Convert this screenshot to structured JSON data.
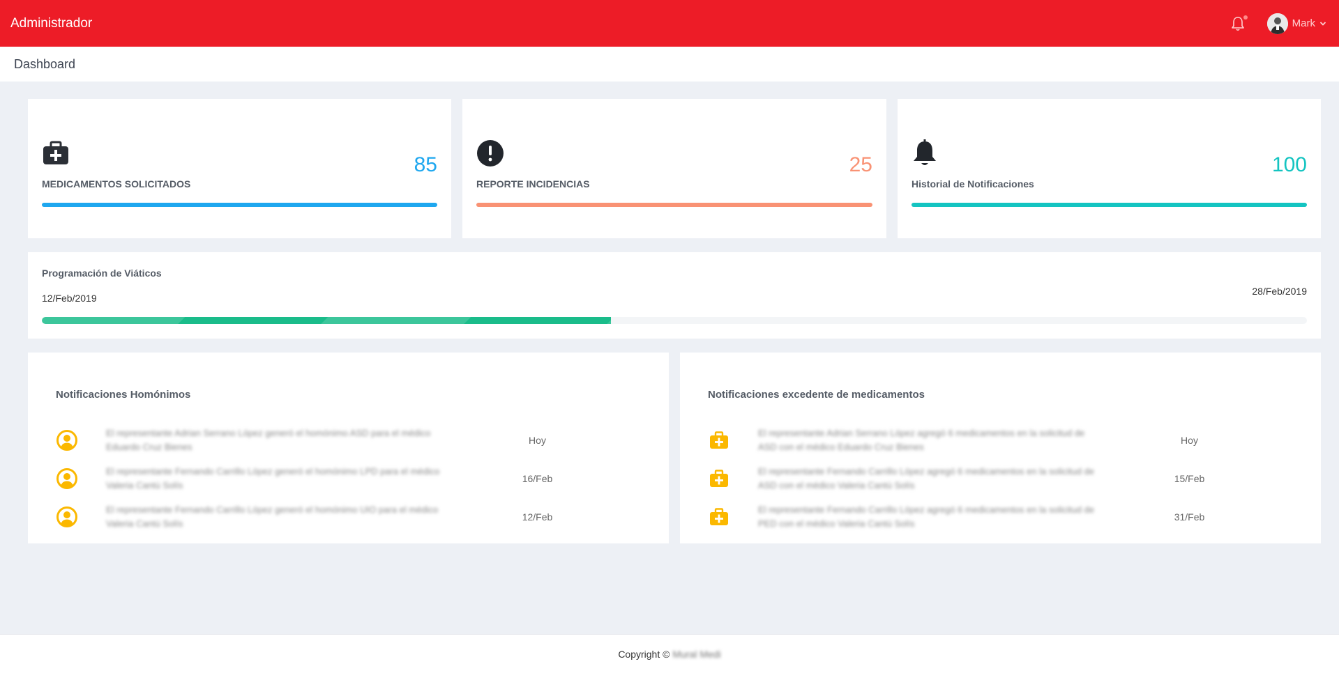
{
  "topbar": {
    "brand": "Administrador",
    "user_name": "Mark",
    "icons": {
      "notifications": "bell-icon",
      "dropdown": "chevron-down-icon"
    },
    "color": "#ed1c27"
  },
  "page_title": "Dashboard",
  "stats": [
    {
      "icon": "medical-kit-icon",
      "label": "MEDICAMENTOS SOLICITADOS",
      "value": "85",
      "color": "#1ea7ef"
    },
    {
      "icon": "alert-circle-icon",
      "label": "REPORTE INCIDENCIAS",
      "value": "25",
      "color": "#f99274"
    },
    {
      "icon": "bell-icon",
      "label": "Historial de Notificaciones",
      "value": "100",
      "color": "#14c4c1"
    }
  ],
  "schedule": {
    "title": "Programación de Viáticos",
    "start_date": "12/Feb/2019",
    "end_date": "28/Feb/2019",
    "progress": 0.45,
    "color": "#1abc8a"
  },
  "notif_homonimos": {
    "title": "Notificaciones Homónimos",
    "icon": "user-circle-icon",
    "items": [
      {
        "text": "El representante Adrian Serrano López generó el homónimo ASD para el médico Eduardo Cruz Bienes",
        "date": "Hoy"
      },
      {
        "text": "El representante Fernando Carrillo López generó el homónimo LPD para el médico Valeria Cantú Solís",
        "date": "16/Feb"
      },
      {
        "text": "El representante Fernando Carrillo López generó el homónimo UIO para el médico Valeria Cantú Solís",
        "date": "12/Feb"
      }
    ]
  },
  "notif_medicamentos": {
    "title": "Notificaciones excedente de medicamentos",
    "icon": "medical-kit-icon",
    "items": [
      {
        "text": "El representante Adrian Serrano López agregó 6 medicamentos en la solicitud de ASD con el médico Eduardo Cruz Bienes",
        "date": "Hoy"
      },
      {
        "text": "El representante Fernando Carrillo López agregó 6 medicamentos en la solicitud de ASD con el médico Valeria Cantú Solís",
        "date": "15/Feb"
      },
      {
        "text": "El representante Fernando Carrillo López agregó 6 medicamentos en la solicitud de PED con el médico Valeria Cantú Solís",
        "date": "31/Feb"
      }
    ]
  },
  "footer": {
    "copyright": "Copyright ©",
    "brand": "Mural Medi"
  },
  "colors": {
    "icon_yellow": "#fbb800",
    "background": "#edf0f5"
  }
}
